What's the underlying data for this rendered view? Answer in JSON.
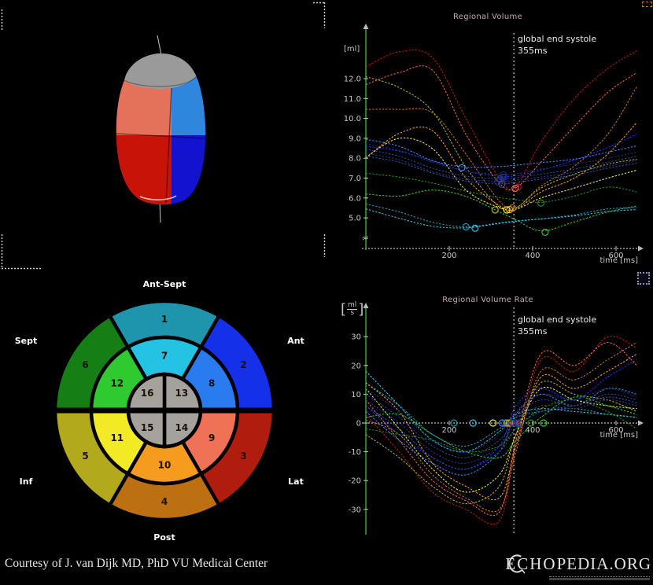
{
  "footer": {
    "credit": "Courtesy of J. van Dijk MD, PhD VU Medical Center",
    "logo_prefix": "ECHO",
    "logo_suffix": "PEDIA.ORG"
  },
  "icons": {
    "top_right": "dashed-selection-icon",
    "mid_right": "window-frame-icon",
    "viewport_brackets": "roi-corner-brackets"
  },
  "model3d": {
    "colors": {
      "cap": "#9a9a9a",
      "upper_left": "#e4715a",
      "upper_right": "#2f86dd",
      "lower_left": "#c81408",
      "lower_right": "#1313cf",
      "axis_line": "#c8c8c8"
    }
  },
  "bullseye": {
    "labels": {
      "top": "Ant-Sept",
      "left_upper": "Sept",
      "right_upper": "Ant",
      "left_lower": "Inf",
      "right_lower": "Lat",
      "bottom": "Post"
    },
    "number_color": "#1d1208",
    "segments": [
      {
        "n": 1,
        "ring": "outer",
        "a1": -30,
        "a2": 30,
        "color": "#1f94ad"
      },
      {
        "n": 2,
        "ring": "outer",
        "a1": 30,
        "a2": 90,
        "color": "#1430e8"
      },
      {
        "n": 3,
        "ring": "outer",
        "a1": 90,
        "a2": 150,
        "color": "#b01d0e"
      },
      {
        "n": 4,
        "ring": "outer",
        "a1": 150,
        "a2": 210,
        "color": "#bc7012"
      },
      {
        "n": 5,
        "ring": "outer",
        "a1": 210,
        "a2": 270,
        "color": "#b3a91c"
      },
      {
        "n": 6,
        "ring": "outer",
        "a1": 270,
        "a2": 330,
        "color": "#157f15"
      },
      {
        "n": 7,
        "ring": "mid",
        "a1": -30,
        "a2": 30,
        "color": "#25c3e3"
      },
      {
        "n": 8,
        "ring": "mid",
        "a1": 30,
        "a2": 90,
        "color": "#2b7bf0"
      },
      {
        "n": 9,
        "ring": "mid",
        "a1": 90,
        "a2": 150,
        "color": "#ef7257"
      },
      {
        "n": 10,
        "ring": "mid",
        "a1": 150,
        "a2": 210,
        "color": "#f59c1e"
      },
      {
        "n": 11,
        "ring": "mid",
        "a1": 210,
        "a2": 270,
        "color": "#f2ea25"
      },
      {
        "n": 12,
        "ring": "mid",
        "a1": 270,
        "a2": 330,
        "color": "#2fca2f"
      },
      {
        "n": 13,
        "ring": "inner",
        "a1": 0,
        "a2": 90,
        "color": "#a5a19d"
      },
      {
        "n": 14,
        "ring": "inner",
        "a1": 90,
        "a2": 180,
        "color": "#a5a19d"
      },
      {
        "n": 15,
        "ring": "inner",
        "a1": 180,
        "a2": 270,
        "color": "#a5a19d"
      },
      {
        "n": 16,
        "ring": "inner",
        "a1": 270,
        "a2": 360,
        "color": "#a5a19d"
      }
    ]
  },
  "chart_data": [
    {
      "type": "line",
      "title": "Regional Volume",
      "ylabel": "[ml]",
      "xlabel": "time [ms]",
      "annotation": {
        "line1": "global end systole",
        "line2": "355ms",
        "x": 355
      },
      "axis": {
        "y_color": "#3aa33a",
        "x_color": "#b9b9b9",
        "tick_color": "#c9c9c9"
      },
      "x_ticks": [
        "200",
        "400",
        "600"
      ],
      "y_ticks": [
        "12.0",
        "11.0",
        "10.0",
        "9.0",
        "8.0",
        "7.0",
        "6.0",
        "5.0"
      ],
      "xlim": [
        0,
        660
      ],
      "ylim": [
        4.2,
        13.6
      ],
      "axis_break": true,
      "x_samples": [
        0,
        80,
        160,
        240,
        320,
        360,
        420,
        500,
        580,
        650
      ],
      "series": [
        {
          "name": "seg1",
          "color": "#2193ad",
          "y": [
            5.7,
            5.3,
            4.78,
            4.55,
            4.75,
            4.85,
            4.95,
            5.15,
            5.45,
            5.52
          ],
          "marker": [
            240,
            4.55
          ]
        },
        {
          "name": "seg2",
          "color": "#1a2fe8",
          "y": [
            8.6,
            8.35,
            7.85,
            7.35,
            7.1,
            7.12,
            7.4,
            7.9,
            8.55,
            9.2
          ],
          "marker": [
            330,
            7.05
          ]
        },
        {
          "name": "seg3",
          "color": "#b01b0d",
          "y": [
            12.6,
            13.35,
            13.05,
            10.0,
            7.0,
            6.58,
            8.8,
            11.0,
            12.5,
            13.4
          ],
          "marker": [
            365,
            6.55
          ]
        },
        {
          "name": "seg4",
          "color": "#bc6f12",
          "y": [
            10.45,
            10.45,
            10.28,
            8.2,
            5.85,
            5.52,
            6.6,
            7.6,
            9.2,
            11.6
          ],
          "marker": [
            352,
            5.5
          ]
        },
        {
          "name": "seg5",
          "color": "#b3a91c",
          "y": [
            12.1,
            11.55,
            10.35,
            7.55,
            5.55,
            5.5,
            6.5,
            7.2,
            7.7,
            7.95
          ],
          "marker": [
            310,
            5.4
          ]
        },
        {
          "name": "seg6",
          "color": "#1d8a1d",
          "y": [
            7.25,
            7.05,
            6.75,
            6.35,
            6.02,
            5.92,
            5.78,
            6.1,
            6.55,
            6.3
          ],
          "marker": [
            420,
            5.75
          ]
        },
        {
          "name": "seg7",
          "color": "#25c3e3",
          "y": [
            5.45,
            4.98,
            4.58,
            4.5,
            4.72,
            4.82,
            4.95,
            5.1,
            5.32,
            5.42
          ],
          "marker": [
            262,
            4.48
          ]
        },
        {
          "name": "seg8",
          "color": "#3b82f0",
          "y": [
            8.95,
            8.6,
            7.88,
            7.55,
            7.58,
            7.65,
            7.78,
            7.95,
            8.3,
            8.62
          ],
          "marker": [
            230,
            7.52
          ]
        },
        {
          "name": "seg9",
          "color": "#e8604b",
          "y": [
            11.7,
            12.3,
            12.42,
            9.2,
            6.75,
            6.52,
            7.8,
            9.6,
            11.3,
            12.3
          ],
          "marker": [
            358,
            6.48
          ]
        },
        {
          "name": "seg10",
          "color": "#f29a1c",
          "y": [
            8.0,
            9.25,
            9.38,
            7.0,
            5.62,
            5.45,
            6.3,
            7.0,
            8.2,
            9.8
          ],
          "marker": [
            345,
            5.42
          ]
        },
        {
          "name": "seg11",
          "color": "#efe72a",
          "y": [
            8.05,
            9.0,
            8.48,
            6.4,
            5.52,
            5.44,
            6.0,
            6.5,
            7.0,
            7.4
          ],
          "marker": [
            338,
            5.4
          ]
        },
        {
          "name": "seg12",
          "color": "#30c830",
          "y": [
            6.2,
            6.1,
            6.4,
            6.08,
            5.3,
            4.9,
            4.35,
            4.8,
            5.3,
            5.6
          ],
          "marker": [
            430,
            4.28
          ]
        },
        {
          "name": "seg13",
          "color": "#2a3f8f",
          "y": [
            8.45,
            8.1,
            7.5,
            7.1,
            6.98,
            7.02,
            7.2,
            7.45,
            7.8,
            8.1
          ],
          "marker": [
            322,
            6.96
          ]
        },
        {
          "name": "seg14",
          "color": "#26357c",
          "y": [
            8.25,
            7.92,
            7.32,
            6.95,
            6.84,
            6.88,
            7.05,
            7.3,
            7.6,
            7.9
          ],
          "marker": [
            316,
            6.82
          ]
        },
        {
          "name": "seg15",
          "color": "#1f2c6a",
          "y": [
            8.72,
            8.4,
            7.8,
            7.35,
            7.18,
            7.22,
            7.45,
            7.7,
            8.0,
            8.3
          ],
          "marker": [
            330,
            7.16
          ]
        },
        {
          "name": "seg16",
          "color": "#32479e",
          "y": [
            8.1,
            7.8,
            7.25,
            6.85,
            6.72,
            6.78,
            6.95,
            7.15,
            7.5,
            7.75
          ],
          "marker": [
            326,
            6.7
          ]
        }
      ]
    },
    {
      "type": "line",
      "title": "Regional Volume Rate",
      "ylabel_num": "ml",
      "ylabel_den": "s",
      "xlabel": "time [ms]",
      "annotation": {
        "line1": "global end systole",
        "line2": "355ms",
        "x": 355
      },
      "axis": {
        "y_color": "#3aa33a",
        "x_color": "#b9b9b9",
        "tick_color": "#c9c9c9"
      },
      "x_ticks": [
        "200",
        "400",
        "600"
      ],
      "y_ticks": [
        "30",
        "20",
        "10",
        "0",
        "-10",
        "-20",
        "-30"
      ],
      "xlim": [
        0,
        660
      ],
      "ylim": [
        -38,
        38
      ],
      "axis_break": false,
      "x_samples": [
        0,
        80,
        160,
        240,
        320,
        360,
        420,
        500,
        580,
        650
      ],
      "series": [
        {
          "name": "seg1",
          "color": "#2193ad",
          "y": [
            14,
            6,
            -4,
            -8,
            -2,
            2,
            4,
            5,
            3,
            2
          ],
          "marker": [
            211,
            0
          ]
        },
        {
          "name": "seg2",
          "color": "#1a2fe8",
          "y": [
            6,
            -4,
            -12,
            -16,
            -8,
            6,
            12,
            8,
            16,
            22
          ],
          "marker": [
            333,
            0
          ]
        },
        {
          "name": "seg3",
          "color": "#b01b0d",
          "y": [
            3,
            -10,
            -24,
            -30,
            -34,
            -8,
            22,
            18,
            30,
            26
          ],
          "marker": [
            352,
            0
          ]
        },
        {
          "name": "seg4",
          "color": "#bc6f12",
          "y": [
            1,
            -4,
            -18,
            -26,
            -30,
            -10,
            18,
            15,
            22,
            28
          ],
          "marker": [
            349,
            0
          ]
        },
        {
          "name": "seg5",
          "color": "#b3a91c",
          "y": [
            -4,
            -12,
            -22,
            -28,
            -22,
            -4,
            14,
            10,
            8,
            4
          ],
          "marker": [
            338,
            0
          ]
        },
        {
          "name": "seg6",
          "color": "#1d8a1d",
          "y": [
            -2,
            -4,
            -6,
            -10,
            -8,
            -2,
            5,
            8,
            4,
            -2
          ],
          "marker": [
            396,
            0
          ]
        },
        {
          "name": "seg7",
          "color": "#25c3e3",
          "y": [
            18,
            6,
            -6,
            -10,
            -3,
            3,
            5,
            4,
            3,
            2
          ],
          "marker": [
            257,
            0
          ]
        },
        {
          "name": "seg8",
          "color": "#3b82f0",
          "y": [
            4,
            -6,
            -14,
            -18,
            -10,
            3,
            10,
            6,
            12,
            10
          ],
          "marker": [
            327,
            0
          ]
        },
        {
          "name": "seg9",
          "color": "#e8604b",
          "y": [
            8,
            -6,
            -20,
            -27,
            -31,
            -6,
            24,
            20,
            28,
            20
          ],
          "marker": [
            358,
            0
          ]
        },
        {
          "name": "seg10",
          "color": "#f29a1c",
          "y": [
            14,
            4,
            -14,
            -22,
            -26,
            -8,
            16,
            12,
            18,
            24
          ],
          "marker": [
            344,
            0
          ]
        },
        {
          "name": "seg11",
          "color": "#efe72a",
          "y": [
            12,
            -2,
            -16,
            -24,
            -18,
            -4,
            12,
            8,
            6,
            5
          ],
          "marker": [
            305,
            0
          ]
        },
        {
          "name": "seg12",
          "color": "#30c830",
          "y": [
            2,
            3,
            -4,
            -10,
            -12,
            -6,
            2,
            9,
            6,
            3
          ],
          "marker": [
            426,
            0
          ]
        },
        {
          "name": "seg13",
          "color": "#2a3f8f",
          "y": [
            10,
            2,
            -8,
            -12,
            -6,
            2,
            8,
            6,
            10,
            8
          ],
          "marker": [
            356,
            0
          ]
        },
        {
          "name": "seg14",
          "color": "#26357c",
          "y": [
            8,
            0,
            -10,
            -14,
            -8,
            0,
            6,
            5,
            8,
            6
          ],
          "marker": [
            362,
            0
          ]
        },
        {
          "name": "seg15",
          "color": "#1f2c6a",
          "y": [
            12,
            4,
            -6,
            -10,
            -4,
            4,
            10,
            8,
            12,
            9
          ],
          "marker": [
            351,
            0
          ]
        },
        {
          "name": "seg16",
          "color": "#32479e",
          "y": [
            6,
            -2,
            -12,
            -16,
            -10,
            -2,
            4,
            6,
            9,
            7
          ],
          "marker": [
            368,
            0
          ]
        }
      ]
    }
  ]
}
